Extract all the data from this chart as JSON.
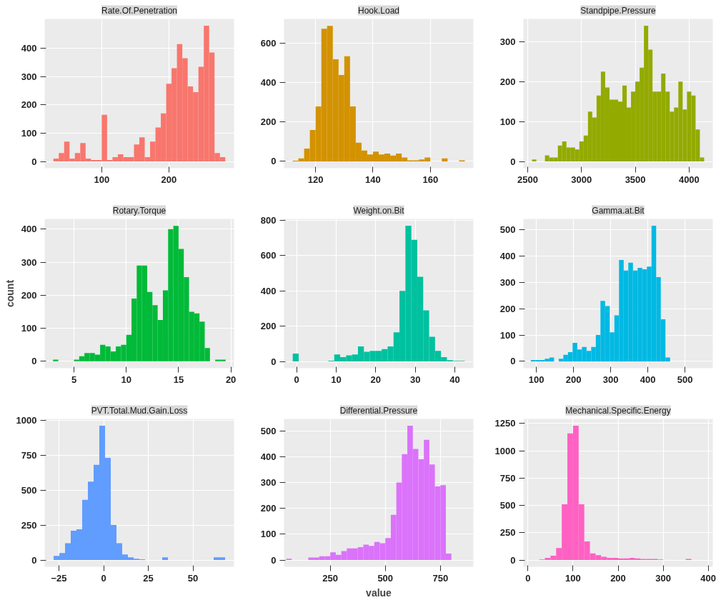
{
  "chart_data": [
    {
      "type": "histogram",
      "title": "Rate.Of.Penetration",
      "color": "#f8766d",
      "bins": [
        28,
        36,
        44,
        52,
        60,
        68,
        76,
        84,
        92,
        100,
        108,
        116,
        124,
        132,
        140,
        148,
        156,
        164,
        172,
        180,
        188,
        196,
        204,
        212,
        220,
        228,
        236,
        244,
        252,
        260,
        268,
        276,
        284
      ],
      "values": [
        10,
        30,
        70,
        10,
        30,
        65,
        10,
        5,
        5,
        165,
        5,
        15,
        25,
        15,
        15,
        60,
        85,
        15,
        70,
        120,
        170,
        275,
        330,
        415,
        365,
        265,
        245,
        335,
        480,
        385,
        30,
        15
      ],
      "xlim": [
        15,
        297
      ],
      "xticks": [
        100,
        200
      ],
      "ylim": [
        -24,
        504
      ],
      "yticks": [
        0,
        100,
        200,
        300,
        400
      ],
      "grid": true
    },
    {
      "type": "histogram",
      "title": "Hook.Load",
      "color": "#d39200",
      "bins": [
        112,
        114,
        116,
        118,
        120,
        122,
        124,
        126,
        128,
        130,
        132,
        134,
        136,
        138,
        140,
        142,
        144,
        146,
        148,
        150,
        152,
        154,
        156,
        158,
        160,
        162,
        164,
        166,
        168,
        170,
        172
      ],
      "values": [
        3,
        15,
        65,
        160,
        280,
        675,
        690,
        520,
        440,
        535,
        280,
        95,
        55,
        35,
        50,
        35,
        40,
        30,
        40,
        20,
        5,
        5,
        10,
        20,
        0,
        0,
        15,
        0,
        0,
        5
      ],
      "xlim": [
        109,
        175
      ],
      "xticks": [
        120,
        140,
        160
      ],
      "ylim": [
        -35,
        725
      ],
      "yticks": [
        0,
        200,
        400,
        600
      ],
      "grid": true
    },
    {
      "type": "histogram",
      "title": "Standpipe.Pressure",
      "color": "#93aa00",
      "bins": [
        2540,
        2580,
        2620,
        2660,
        2700,
        2740,
        2780,
        2820,
        2860,
        2900,
        2940,
        2980,
        3020,
        3060,
        3100,
        3140,
        3180,
        3220,
        3260,
        3300,
        3340,
        3380,
        3420,
        3460,
        3500,
        3540,
        3580,
        3620,
        3660,
        3700,
        3740,
        3780,
        3820,
        3860,
        3900,
        3940,
        3980,
        4020,
        4060,
        4100,
        4140
      ],
      "values": [
        5,
        0,
        0,
        15,
        10,
        10,
        40,
        50,
        35,
        35,
        30,
        50,
        65,
        125,
        110,
        165,
        225,
        185,
        155,
        155,
        150,
        190,
        135,
        175,
        200,
        235,
        340,
        280,
        175,
        175,
        220,
        175,
        125,
        135,
        200,
        130,
        175,
        165,
        80,
        10
      ],
      "xlim": [
        2460,
        4220
      ],
      "xticks": [
        2500,
        3000,
        3500,
        4000
      ],
      "ylim": [
        -17,
        357
      ],
      "yticks": [
        0,
        100,
        200,
        300
      ],
      "grid": true
    },
    {
      "type": "histogram",
      "title": "Rotary.Torque",
      "ylabel": "count",
      "color": "#00ba38",
      "bins": [
        3,
        3.5,
        4,
        4.5,
        5,
        5.5,
        6,
        6.5,
        7,
        7.5,
        8,
        8.5,
        9,
        9.5,
        10,
        10.5,
        11,
        11.5,
        12,
        12.5,
        13,
        13.5,
        14,
        14.5,
        15,
        15.5,
        16,
        16.5,
        17,
        17.5,
        18,
        18.5,
        19,
        19.5
      ],
      "values": [
        5,
        0,
        0,
        0,
        5,
        15,
        25,
        25,
        20,
        50,
        45,
        30,
        45,
        50,
        80,
        190,
        290,
        290,
        210,
        170,
        125,
        215,
        400,
        410,
        340,
        255,
        150,
        145,
        120,
        40,
        0,
        5,
        5
      ],
      "xlim": [
        2.2,
        20.3
      ],
      "xticks": [
        5,
        10,
        15,
        20
      ],
      "ylim": [
        -21,
        431
      ],
      "yticks": [
        0,
        100,
        200,
        300,
        400
      ],
      "grid": true
    },
    {
      "type": "histogram",
      "title": "Weight.on.Bit",
      "color": "#00c19f",
      "bins": [
        -1,
        0.5,
        2,
        3.5,
        5,
        6.5,
        8,
        9.5,
        11,
        12.5,
        14,
        15.5,
        17,
        18.5,
        20,
        21.5,
        23,
        24.5,
        26,
        27.5,
        29,
        30.5,
        32,
        33.5,
        35,
        36.5,
        38,
        39.5,
        41,
        42.5
      ],
      "values": [
        45,
        0,
        0,
        0,
        0,
        0,
        5,
        40,
        25,
        35,
        40,
        85,
        55,
        60,
        60,
        70,
        85,
        165,
        400,
        770,
        690,
        480,
        290,
        140,
        60,
        25,
        8,
        3,
        3
      ],
      "xlim": [
        -3.2,
        44.7
      ],
      "xticks": [
        0,
        10,
        20,
        30,
        40
      ],
      "ylim": [
        -38,
        808
      ],
      "yticks": [
        0,
        200,
        400,
        600,
        800
      ],
      "grid": true
    },
    {
      "type": "histogram",
      "title": "Gamma.at.Bit",
      "color": "#00b9e3",
      "bins": [
        85,
        97.5,
        110,
        122.5,
        135,
        147.5,
        160,
        172.5,
        185,
        197.5,
        210,
        222.5,
        235,
        247.5,
        260,
        272.5,
        285,
        297.5,
        310,
        322.5,
        335,
        347.5,
        360,
        372.5,
        385,
        397.5,
        410,
        422.5,
        435,
        447.5,
        460
      ],
      "values": [
        5,
        5,
        5,
        10,
        15,
        0,
        10,
        25,
        35,
        70,
        45,
        55,
        40,
        55,
        100,
        230,
        210,
        110,
        175,
        385,
        345,
        375,
        345,
        355,
        350,
        360,
        515,
        320,
        160,
        15
      ],
      "xlim": [
        65,
        575
      ],
      "xticks": [
        100,
        200,
        300,
        400,
        500
      ],
      "ylim": [
        -26,
        541
      ],
      "yticks": [
        0,
        100,
        200,
        300,
        400,
        500
      ],
      "grid": true
    },
    {
      "type": "histogram",
      "title": "PVT.Total.Mud.Gain.Loss",
      "color": "#619cff",
      "bins": [
        -28,
        -24.8,
        -21.6,
        -18.4,
        -15.2,
        -12,
        -8.8,
        -5.6,
        -2.4,
        0.8,
        4,
        7.2,
        10.4,
        13.6,
        16.8,
        20,
        23.2,
        26.4,
        29.6,
        32.8,
        36,
        39.2,
        42.4,
        45.6,
        48.8,
        52,
        55.2,
        58.4,
        61.6,
        64.8,
        68
      ],
      "values": [
        30,
        50,
        120,
        210,
        220,
        430,
        560,
        680,
        960,
        730,
        250,
        120,
        40,
        20,
        10,
        5,
        0,
        0,
        0,
        20,
        0,
        0,
        0,
        0,
        0,
        0,
        0,
        0,
        20,
        20
      ],
      "xlim": [
        -33,
        73
      ],
      "xticks": [
        -25,
        0,
        25,
        50
      ],
      "ylim": [
        -48,
        1008
      ],
      "yticks": [
        0,
        250,
        500,
        750,
        1000
      ],
      "grid": true
    },
    {
      "type": "histogram",
      "title": "Differential.Pressure",
      "xlabel": "value",
      "color": "#db72fb",
      "bins": [
        50,
        75,
        100,
        125,
        150,
        175,
        200,
        225,
        250,
        275,
        300,
        325,
        350,
        375,
        400,
        425,
        450,
        475,
        500,
        525,
        550,
        575,
        600,
        625,
        650,
        675,
        700,
        725,
        750,
        775,
        800
      ],
      "values": [
        5,
        0,
        0,
        0,
        10,
        10,
        15,
        15,
        30,
        20,
        35,
        45,
        45,
        50,
        60,
        55,
        70,
        65,
        85,
        175,
        300,
        410,
        520,
        430,
        390,
        465,
        370,
        285,
        290,
        25
      ],
      "xlim": [
        40,
        900
      ],
      "xticks": [
        250,
        500,
        750
      ],
      "ylim": [
        -26,
        546
      ],
      "yticks": [
        0,
        100,
        200,
        300,
        400,
        500
      ],
      "grid": true
    },
    {
      "type": "histogram",
      "title": "Mechanical.Specific.Energy",
      "color": "#ff61c3",
      "bins": [
        25,
        37.5,
        50,
        62.5,
        75,
        87.5,
        100,
        112.5,
        125,
        137.5,
        150,
        162.5,
        175,
        187.5,
        200,
        212.5,
        225,
        237.5,
        250,
        262.5,
        275,
        287.5,
        300,
        312.5,
        325,
        337.5,
        350,
        362.5,
        375
      ],
      "values": [
        5,
        20,
        40,
        110,
        510,
        1160,
        1230,
        510,
        170,
        60,
        45,
        30,
        20,
        20,
        15,
        15,
        20,
        15,
        10,
        10,
        10,
        5,
        0,
        0,
        0,
        0,
        10,
        0
      ],
      "xlim": [
        -10,
        410
      ],
      "xticks": [
        0,
        100,
        200,
        300,
        400
      ],
      "ylim": [
        -62,
        1292
      ],
      "yticks": [
        0,
        250,
        500,
        750,
        1000,
        1250
      ],
      "grid": true
    }
  ]
}
